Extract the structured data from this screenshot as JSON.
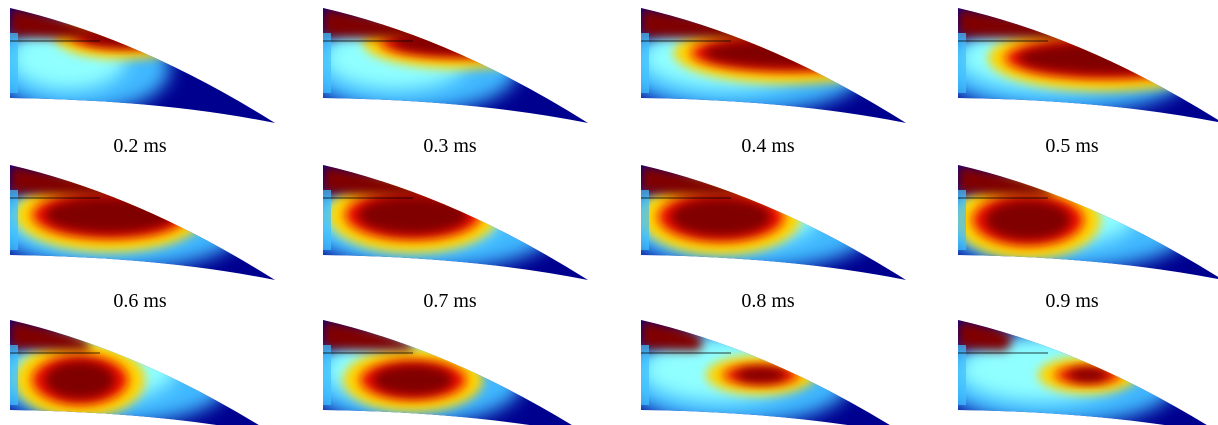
{
  "captions": [
    "0.2 ms",
    "0.3 ms",
    "0.4 ms",
    "0.5 ms",
    "0.6 ms",
    "0.7 ms",
    "0.8 ms",
    "0.9 ms"
  ]
}
